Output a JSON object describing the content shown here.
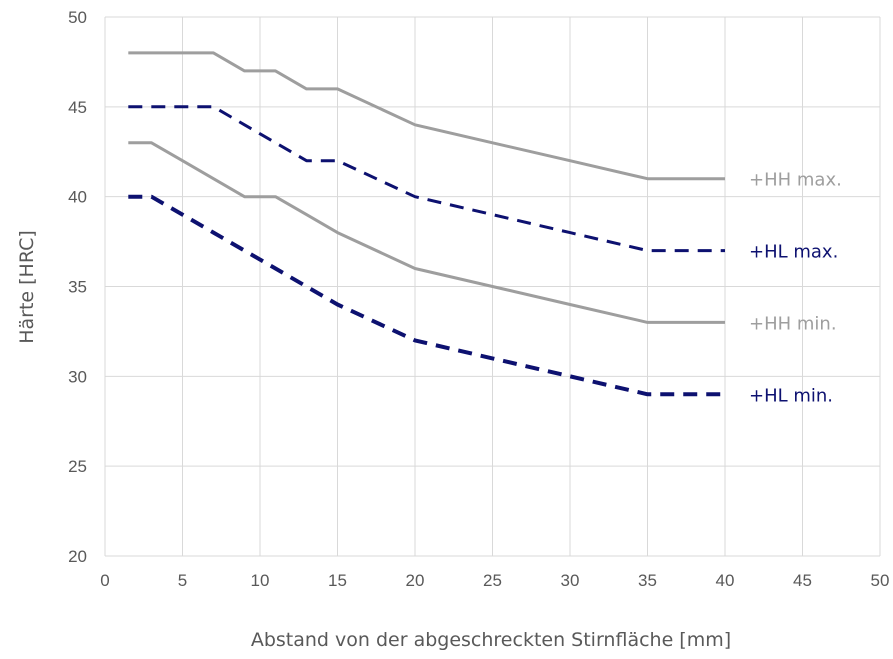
{
  "chart_data": {
    "type": "line",
    "title": "",
    "xlabel": "Abstand von der abgeschreckten Stirnfläche [mm]",
    "ylabel": "Härte [HRC]",
    "xlim": [
      0,
      50
    ],
    "ylim": [
      20,
      50
    ],
    "x_ticks": [
      "0",
      "5",
      "10",
      "15",
      "20",
      "25",
      "30",
      "35",
      "40",
      "45",
      "50"
    ],
    "y_ticks": [
      "20",
      "25",
      "30",
      "35",
      "40",
      "45",
      "50"
    ],
    "grid": true,
    "legend": "direct labels at line ends",
    "colors": {
      "HH": "#9e9e9e",
      "HL": "#0d1170",
      "grid": "#d9d9d9",
      "text": "#595959"
    },
    "series": [
      {
        "name": "+HH max.",
        "style": "solid",
        "color": "#9e9e9e",
        "points": [
          [
            1.5,
            48
          ],
          [
            7,
            48
          ],
          [
            9,
            47
          ],
          [
            11,
            47
          ],
          [
            13,
            46
          ],
          [
            15,
            46
          ],
          [
            20,
            44
          ],
          [
            25,
            43
          ],
          [
            30,
            42
          ],
          [
            35,
            41
          ],
          [
            40,
            41
          ]
        ]
      },
      {
        "name": "+HL max.",
        "style": "dashed",
        "color": "#0d1170",
        "points": [
          [
            1.5,
            45
          ],
          [
            7,
            45
          ],
          [
            9,
            44
          ],
          [
            11,
            43
          ],
          [
            13,
            42
          ],
          [
            15,
            42
          ],
          [
            20,
            40
          ],
          [
            25,
            39
          ],
          [
            30,
            38
          ],
          [
            35,
            37
          ],
          [
            40,
            37
          ]
        ]
      },
      {
        "name": "+HH min.",
        "style": "solid",
        "color": "#9e9e9e",
        "points": [
          [
            1.5,
            43
          ],
          [
            3,
            43
          ],
          [
            5,
            42
          ],
          [
            7,
            41
          ],
          [
            9,
            40
          ],
          [
            11,
            40
          ],
          [
            13,
            39
          ],
          [
            15,
            38
          ],
          [
            20,
            36
          ],
          [
            25,
            35
          ],
          [
            30,
            34
          ],
          [
            35,
            33
          ],
          [
            40,
            33
          ]
        ]
      },
      {
        "name": "+HL min.",
        "style": "dashed",
        "color": "#0d1170",
        "points": [
          [
            1.5,
            40
          ],
          [
            3,
            40
          ],
          [
            5,
            39
          ],
          [
            7,
            38
          ],
          [
            9,
            37
          ],
          [
            11,
            36
          ],
          [
            13,
            35
          ],
          [
            15,
            34
          ],
          [
            20,
            32
          ],
          [
            25,
            31
          ],
          [
            30,
            30
          ],
          [
            35,
            29
          ],
          [
            40,
            29
          ]
        ]
      }
    ]
  }
}
